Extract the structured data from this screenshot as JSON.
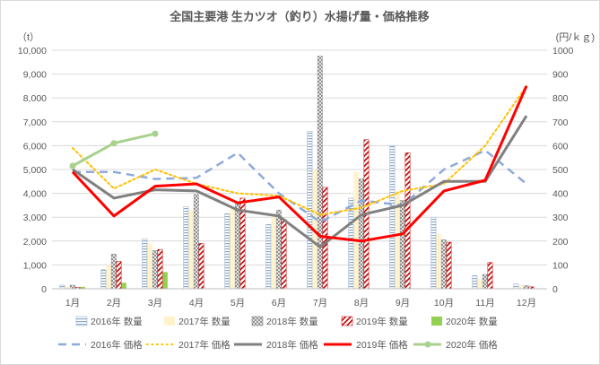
{
  "chart_data": {
    "type": "bar",
    "title": "全国主要港 生カツオ（釣り）水揚げ量・価格推移",
    "left_unit": "（t）",
    "right_unit": "(円/ｋｇ)",
    "categories": [
      "1月",
      "2月",
      "3月",
      "4月",
      "5月",
      "6月",
      "7月",
      "8月",
      "9月",
      "10月",
      "11月",
      "12月"
    ],
    "ylim_left": [
      0,
      10000
    ],
    "ylim_right": [
      0,
      1000
    ],
    "left_ticks": [
      "0",
      "1,000",
      "2,000",
      "3,000",
      "4,000",
      "5,000",
      "6,000",
      "7,000",
      "8,000",
      "9,000",
      "10,000"
    ],
    "right_ticks": [
      "0",
      "100",
      "200",
      "300",
      "400",
      "500",
      "600",
      "700",
      "800",
      "900",
      "1000"
    ],
    "grid": true,
    "legend_position": "bottom",
    "bar_series": [
      {
        "name": "2016年 数量",
        "pattern": "hstripe",
        "color": "#8ea9c8",
        "values": [
          150,
          800,
          2100,
          3450,
          3150,
          2700,
          6600,
          3800,
          6000,
          3000,
          550,
          200
        ]
      },
      {
        "name": "2017年 数量",
        "pattern": "solid",
        "color": "#fff2cc",
        "values": [
          100,
          1000,
          1900,
          3300,
          3350,
          3000,
          5000,
          4900,
          4100,
          2300,
          400,
          150
        ]
      },
      {
        "name": "2018年 数量",
        "pattern": "cross",
        "color": "#7f7f7f",
        "values": [
          150,
          1450,
          1600,
          3950,
          3550,
          3300,
          9750,
          4600,
          3700,
          2050,
          600,
          130
        ]
      },
      {
        "name": "2019年 数量",
        "pattern": "diag",
        "color": "#c00000",
        "values": [
          60,
          1150,
          1650,
          1900,
          3800,
          2900,
          4250,
          6250,
          5700,
          1950,
          1100,
          80
        ]
      },
      {
        "name": "2020年 数量",
        "pattern": "solid",
        "color": "#92d050",
        "values": [
          80,
          250,
          700,
          null,
          null,
          null,
          null,
          null,
          null,
          null,
          null,
          null
        ]
      }
    ],
    "line_series": [
      {
        "name": "2016年 価格",
        "style": "dash",
        "color": "#8eaadb",
        "width": 2.5,
        "values": [
          490,
          490,
          460,
          465,
          570,
          400,
          280,
          370,
          350,
          500,
          580,
          440
        ]
      },
      {
        "name": "2017年 価格",
        "style": "dot",
        "color": "#ffc000",
        "width": 2,
        "values": [
          590,
          420,
          500,
          440,
          400,
          390,
          310,
          340,
          410,
          440,
          600,
          850
        ]
      },
      {
        "name": "2018年 価格",
        "style": "solid",
        "color": "#808080",
        "width": 3,
        "values": [
          500,
          380,
          415,
          410,
          330,
          305,
          175,
          310,
          350,
          450,
          450,
          725
        ]
      },
      {
        "name": "2019年 価格",
        "style": "solid",
        "color": "#ff0000",
        "width": 3,
        "values": [
          490,
          305,
          430,
          440,
          360,
          385,
          220,
          200,
          230,
          410,
          455,
          850
        ]
      },
      {
        "name": "2020年 価格",
        "style": "marker",
        "color": "#a9d18e",
        "width": 3,
        "values": [
          515,
          610,
          650,
          null,
          null,
          null,
          null,
          null,
          null,
          null,
          null,
          null
        ]
      }
    ]
  }
}
